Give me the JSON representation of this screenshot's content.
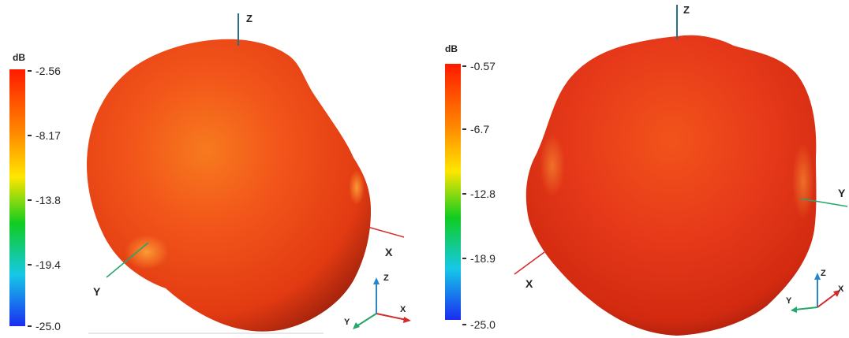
{
  "figures": [
    {
      "colorbar": {
        "unit": "dB",
        "ticks": [
          "-2.56",
          "-8.17",
          "-13.8",
          "-19.4",
          "-25.0"
        ]
      },
      "axis_labels": {
        "z": "Z",
        "x": "X",
        "y": "Y"
      },
      "triad_labels": {
        "z": "Z",
        "x": "X",
        "y": "Y"
      }
    },
    {
      "colorbar": {
        "unit": "dB",
        "ticks": [
          "-0.57",
          "-6.7",
          "-12.8",
          "-18.9",
          "-25.0"
        ]
      },
      "axis_labels": {
        "z": "Z",
        "x": "X",
        "y": "Y"
      },
      "triad_labels": {
        "z": "Z",
        "x": "X",
        "y": "Y"
      }
    }
  ],
  "colors": {
    "colorbar_stops": [
      "#ff1a00",
      "#ff8a00",
      "#ffe600",
      "#10cc20",
      "#16c8e8",
      "#1a2cf0"
    ],
    "axis_z": "#2b6f86",
    "axis_x": "#d22b2b",
    "axis_y": "#23a66a",
    "triad_z": "#2a86c8",
    "triad_x": "#d22b2b",
    "triad_y": "#23a66a"
  }
}
